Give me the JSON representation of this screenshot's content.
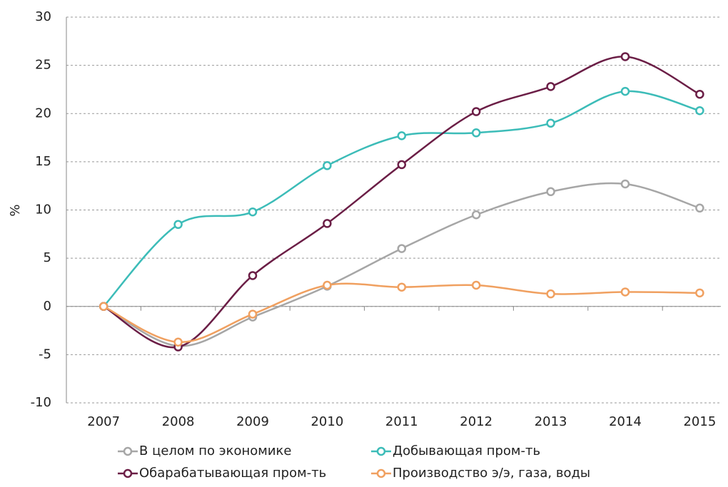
{
  "chart_data": {
    "type": "line",
    "y_label": "%",
    "categories": [
      "2007",
      "2008",
      "2009",
      "2010",
      "2011",
      "2012",
      "2013",
      "2014",
      "2015"
    ],
    "series": [
      {
        "name": "В целом по экономике",
        "color": "#a6a6a6",
        "values": [
          0,
          -4.1,
          -1.1,
          2.1,
          6.0,
          9.5,
          11.9,
          12.7,
          10.2
        ]
      },
      {
        "name": "Добывающая пром-ть",
        "color": "#3cbcb8",
        "values": [
          0,
          8.5,
          9.8,
          14.6,
          17.7,
          18.0,
          19.0,
          22.3,
          20.3
        ]
      },
      {
        "name": "Обарабатывающая пром-ть",
        "color": "#6b1e46",
        "values": [
          0,
          -4.2,
          3.2,
          8.6,
          14.7,
          20.2,
          22.8,
          25.9,
          22.0
        ]
      },
      {
        "name": "Производство э/э, газа, воды",
        "color": "#f0a060",
        "values": [
          0,
          -3.7,
          -0.8,
          2.2,
          2.0,
          2.2,
          1.3,
          1.5,
          1.4
        ]
      }
    ],
    "ylim": [
      -10,
      30
    ],
    "yticks": [
      -10,
      -5,
      0,
      5,
      10,
      15,
      20,
      25,
      30
    ],
    "grid": true
  }
}
